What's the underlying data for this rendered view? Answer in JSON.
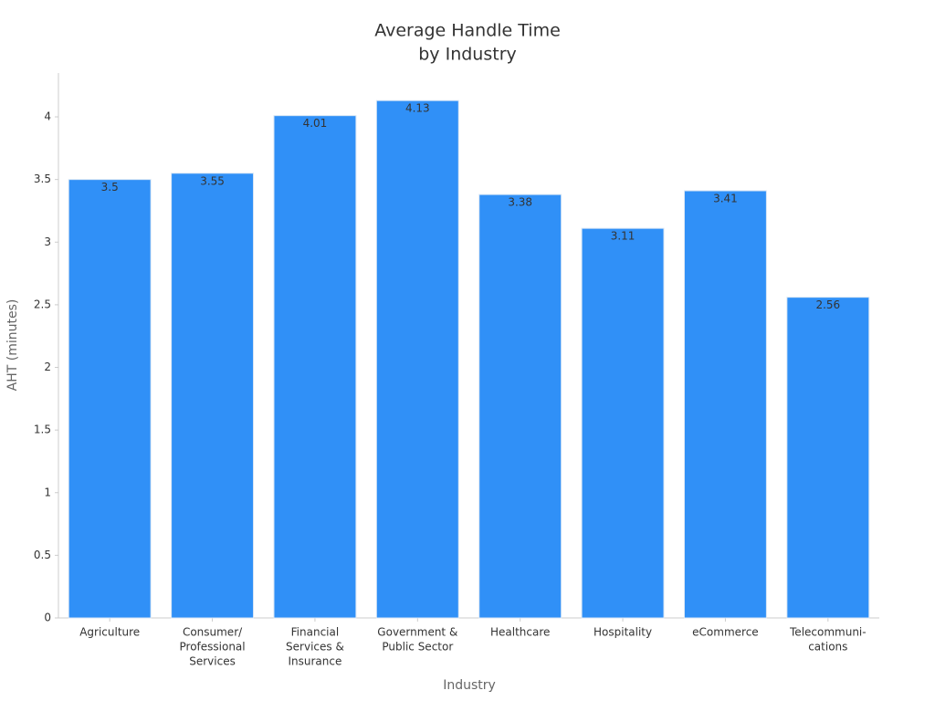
{
  "chart_data": {
    "type": "bar",
    "title": [
      "Average Handle Time",
      "by Industry"
    ],
    "x_label": "Industry",
    "y_label": "AHT (minutes)",
    "categories": [
      [
        "Agriculture"
      ],
      [
        "Consumer/",
        "Professional",
        "Services"
      ],
      [
        "Financial",
        "Services &",
        "Insurance"
      ],
      [
        "Government &",
        "Public Sector"
      ],
      [
        "Healthcare"
      ],
      [
        "Hospitality"
      ],
      [
        "eCommerce"
      ],
      [
        "Telecommuni-",
        "cations"
      ]
    ],
    "values": [
      3.5,
      3.55,
      4.01,
      4.13,
      3.38,
      3.11,
      3.41,
      2.56
    ],
    "color": "#3090f7",
    "ylim": [
      0,
      4.35
    ],
    "yticks": [
      0,
      0.5,
      1,
      1.5,
      2,
      2.5,
      3,
      3.5,
      4
    ],
    "grid": false
  }
}
